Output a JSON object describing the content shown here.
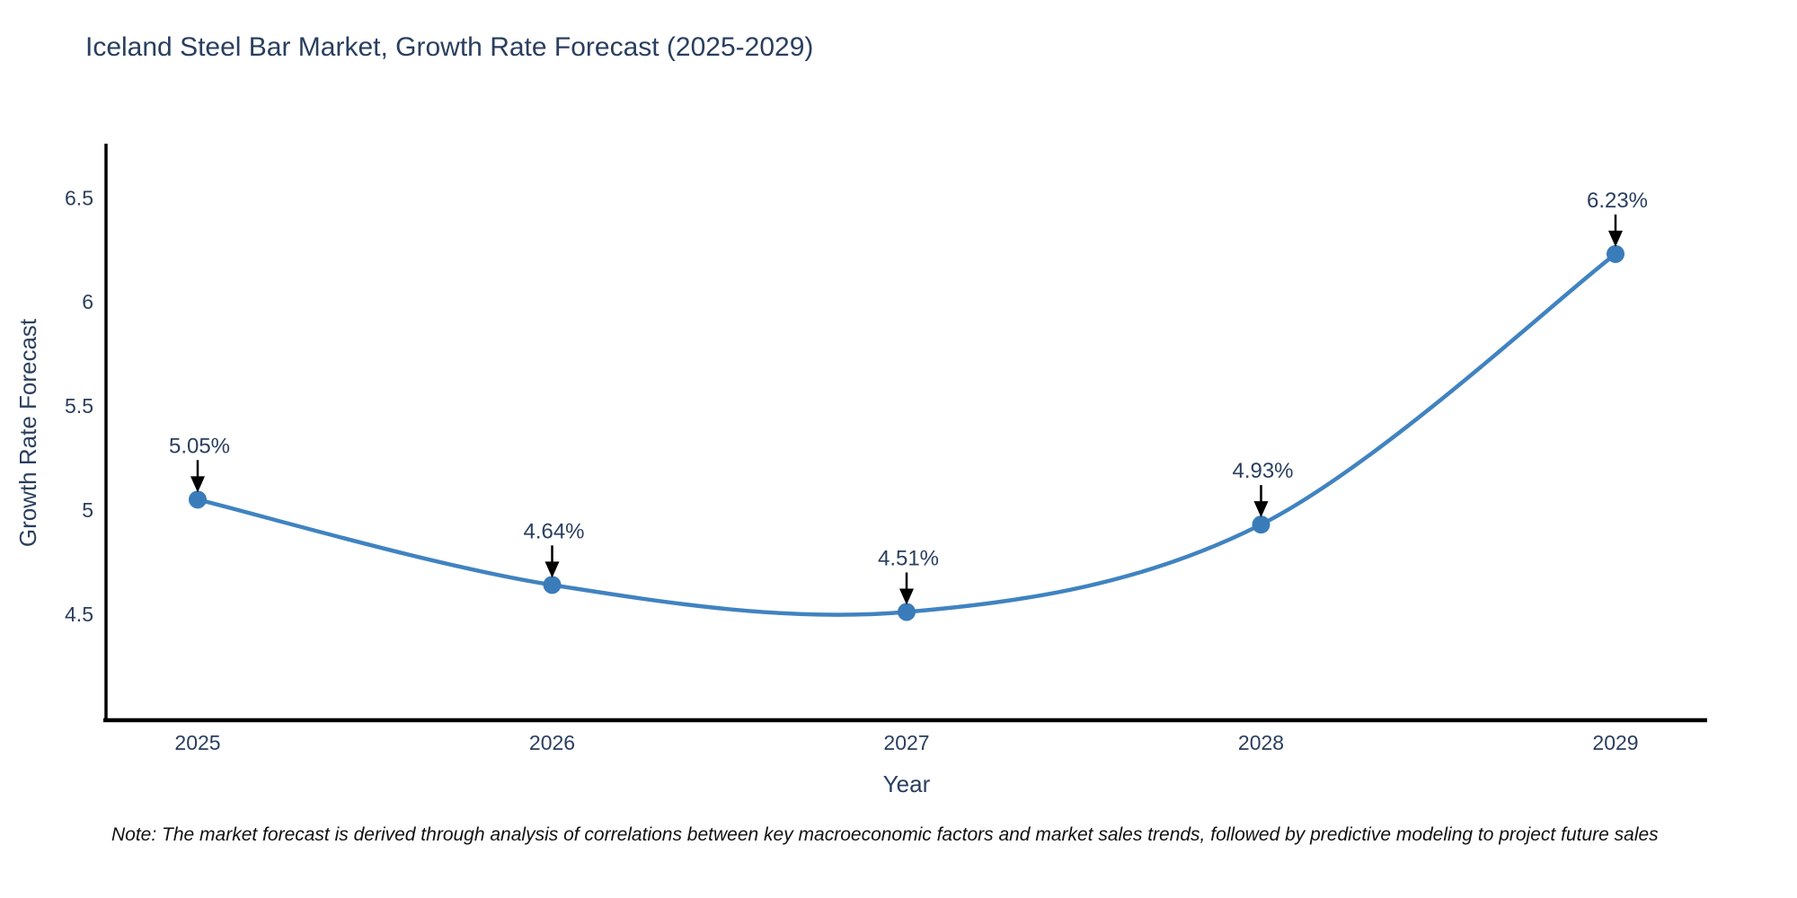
{
  "title": "Iceland Steel Bar Market, Growth Rate Forecast (2025-2029)",
  "chart_data": {
    "type": "line",
    "line_shape": "spline",
    "x": [
      2025,
      2026,
      2027,
      2028,
      2029
    ],
    "y": [
      5.05,
      4.64,
      4.51,
      4.93,
      6.23
    ],
    "point_labels": [
      "5.05%",
      "4.64%",
      "4.51%",
      "4.93%",
      "6.23%"
    ],
    "title": "Iceland Steel Bar Market, Growth Rate Forecast (2025-2029)",
    "xlabel": "Year",
    "ylabel": "Growth Rate Forecast",
    "x_tick_labels": [
      "2025",
      "2026",
      "2027",
      "2028",
      "2029"
    ],
    "y_tick_labels": [
      "6.5",
      "6",
      "5.5",
      "5",
      "4.5"
    ],
    "y_tick_values": [
      6.5,
      6.0,
      5.5,
      5.0,
      4.5
    ],
    "ylim": [
      3.99,
      6.76
    ],
    "grid": false,
    "legend": "none",
    "colors": {
      "line": "#4083c0",
      "marker": "#3a7cba",
      "axis": "#000000",
      "annotation_arrow": "#000000",
      "text": "#2a3f5f"
    }
  },
  "note": "Note: The market forecast is derived through analysis of correlations between key macroeconomic factors and market sales trends, followed by predictive modeling to project future sales"
}
